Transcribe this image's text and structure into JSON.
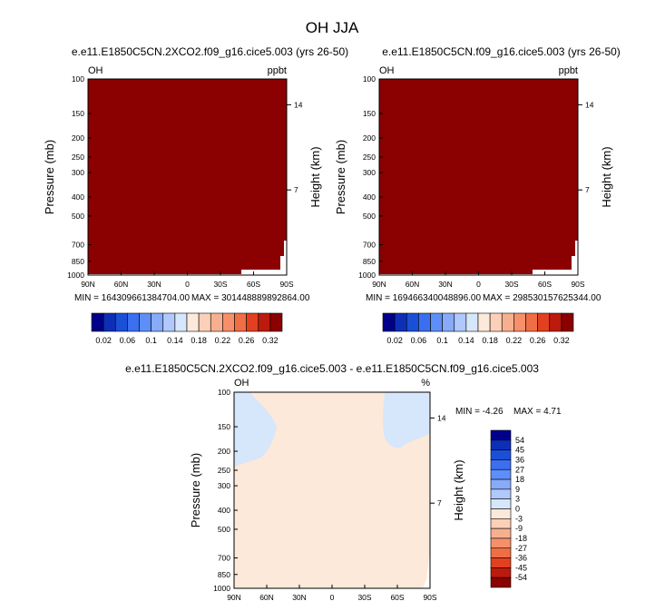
{
  "chart_data": {
    "type": "heatmap",
    "title": "OH JJA",
    "variable": "OH",
    "axes": {
      "x_ticks": [
        "90N",
        "60N",
        "30N",
        "0",
        "30S",
        "60S",
        "90S"
      ],
      "x_values": [
        90,
        60,
        30,
        0,
        -30,
        -60,
        -90
      ],
      "y_label": "Pressure (mb)",
      "y_ticks": [
        "100",
        "150",
        "200",
        "250",
        "300",
        "400",
        "500",
        "700",
        "850",
        "1000"
      ],
      "y_values": [
        100,
        150,
        200,
        250,
        300,
        400,
        500,
        700,
        850,
        1000
      ],
      "y2_label": "Height (km)",
      "y2_ticks": [
        "14",
        "7"
      ],
      "y2_values": [
        14,
        7
      ]
    },
    "panels": [
      {
        "title": "e.e11.E1850C5CN.2XCO2.f09_g16.cice5.003 (yrs 26-50)",
        "units": "ppbt",
        "min_label": "MIN = 164309661384704.00",
        "max_label": "MAX = 301448889892864.00",
        "fill_color": "#8b0000"
      },
      {
        "title": "e.e11.E1850C5CN.f09_g16.cice5.003 (yrs 26-50)",
        "units": "ppbt",
        "min_label": "MIN = 169466340048896.00",
        "max_label": "MAX = 298530157625344.00",
        "fill_color": "#8b0000"
      }
    ],
    "colorbar": {
      "colors": [
        "#00008b",
        "#0d2fb8",
        "#1a4fd8",
        "#3a6ff0",
        "#5e8ef7",
        "#87aaf9",
        "#b0c8fb",
        "#d6e6fb",
        "#fde9d9",
        "#fcd0b8",
        "#f7b08f",
        "#f6906a",
        "#f06e45",
        "#e2401f",
        "#bb1a0c",
        "#8b0000"
      ],
      "labels": [
        "0.02",
        "0.06",
        "0.1",
        "0.14",
        "0.18",
        "0.22",
        "0.26",
        "0.32"
      ]
    },
    "difference": {
      "title": "e.e11.E1850C5CN.2XCO2.f09_g16.cice5.003 - e.e11.E1850C5CN.f09_g16.cice5.003",
      "units": "%",
      "min_label": "MIN = -4.26",
      "max_label": "MAX =  4.71",
      "field_color": "#fde9d9",
      "negative_color": "#d6e6fb",
      "colorbar": {
        "colors": [
          "#00008b",
          "#0d2fb8",
          "#1a4fd8",
          "#3a6ff0",
          "#5e8ef7",
          "#87aaf9",
          "#b0c8fb",
          "#d6e6fb",
          "#fde9d9",
          "#fcd0b8",
          "#f7b08f",
          "#f6906a",
          "#f06e45",
          "#e2401f",
          "#bb1a0c",
          "#8b0000"
        ],
        "labels": [
          "-54",
          "-45",
          "-36",
          "-27",
          "-18",
          "-9",
          "-3",
          "0",
          "3",
          "9",
          "18",
          "27",
          "36",
          "45",
          "54"
        ]
      }
    }
  }
}
